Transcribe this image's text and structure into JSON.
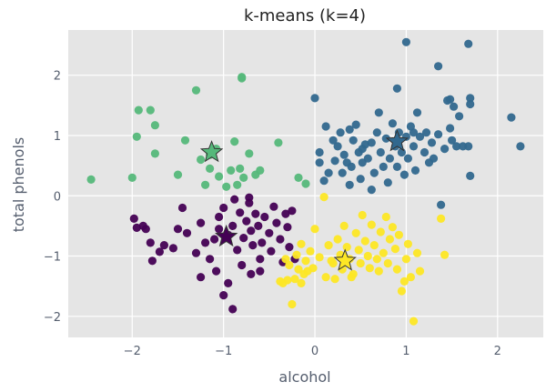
{
  "chart_data": {
    "type": "scatter",
    "title": "k-means (k=4)",
    "xlabel": "alcohol",
    "ylabel": "total phenols",
    "xlim": [
      -2.7,
      2.5
    ],
    "ylim": [
      -2.35,
      2.75
    ],
    "xticks": [
      -2,
      -1,
      0,
      1,
      2
    ],
    "yticks": [
      -2,
      -1,
      0,
      1,
      2
    ],
    "grid": true,
    "legend": "none",
    "colors": {
      "background": "#e5e5e5",
      "grid": "#ffffff",
      "cluster_0": "#440154",
      "cluster_1": "#31688e",
      "cluster_2": "#55b87a",
      "cluster_3": "#fde725",
      "marker_edge": "#333333"
    },
    "series": [
      {
        "values": [
          [
            -1.98,
            -0.38
          ],
          [
            -1.95,
            -0.53
          ],
          [
            -1.88,
            -0.5
          ],
          [
            -1.85,
            -0.55
          ],
          [
            -1.8,
            -0.78
          ],
          [
            -1.78,
            -1.08
          ],
          [
            -1.7,
            -0.93
          ],
          [
            -1.65,
            -0.82
          ],
          [
            -1.55,
            -0.87
          ],
          [
            -1.5,
            -0.55
          ],
          [
            -1.45,
            -0.2
          ],
          [
            -1.4,
            -0.62
          ],
          [
            -1.3,
            -0.95
          ],
          [
            -1.25,
            -0.45
          ],
          [
            -1.2,
            -0.78
          ],
          [
            -1.15,
            -1.05
          ],
          [
            -1.1,
            -0.72
          ],
          [
            -1.05,
            -0.35
          ],
          [
            -1.05,
            -0.55
          ],
          [
            -1.0,
            -0.2
          ],
          [
            -0.95,
            -0.65
          ],
          [
            -0.9,
            -0.5
          ],
          [
            -0.85,
            -0.9
          ],
          [
            -0.82,
            -0.28
          ],
          [
            -0.78,
            -0.7
          ],
          [
            -0.75,
            -0.42
          ],
          [
            -0.72,
            -0.12
          ],
          [
            -0.7,
            -0.58
          ],
          [
            -0.68,
            -0.82
          ],
          [
            -0.65,
            -0.3
          ],
          [
            -0.62,
            -0.5
          ],
          [
            -0.6,
            -1.05
          ],
          [
            -0.58,
            -0.78
          ],
          [
            -0.55,
            -0.35
          ],
          [
            -0.5,
            -0.62
          ],
          [
            -0.48,
            -0.92
          ],
          [
            -0.45,
            -0.18
          ],
          [
            -0.42,
            -0.45
          ],
          [
            -0.38,
            -0.72
          ],
          [
            -0.35,
            -1.1
          ],
          [
            -0.32,
            -0.3
          ],
          [
            -0.3,
            -0.52
          ],
          [
            -0.28,
            -0.85
          ],
          [
            -0.25,
            -0.25
          ],
          [
            -0.22,
            -1.05
          ],
          [
            -0.9,
            -1.88
          ],
          [
            -1.0,
            -1.65
          ],
          [
            -1.25,
            -1.35
          ],
          [
            -0.95,
            -1.45
          ],
          [
            -0.7,
            -1.3
          ],
          [
            -0.6,
            -1.25
          ],
          [
            -0.8,
            -1.15
          ],
          [
            -1.08,
            -1.25
          ],
          [
            -0.88,
            -0.06
          ],
          [
            -0.72,
            -0.03
          ]
        ],
        "center": [
          -0.97,
          -0.68
        ]
      },
      {
        "values": [
          [
            0.0,
            1.62
          ],
          [
            0.05,
            0.72
          ],
          [
            0.05,
            0.55
          ],
          [
            0.1,
            0.25
          ],
          [
            0.12,
            1.15
          ],
          [
            0.15,
            0.38
          ],
          [
            0.2,
            0.92
          ],
          [
            0.22,
            0.58
          ],
          [
            0.25,
            0.82
          ],
          [
            0.28,
            1.05
          ],
          [
            0.3,
            0.38
          ],
          [
            0.32,
            0.68
          ],
          [
            0.35,
            0.55
          ],
          [
            0.38,
            0.18
          ],
          [
            0.4,
            0.48
          ],
          [
            0.42,
            0.92
          ],
          [
            0.45,
            1.18
          ],
          [
            0.48,
            0.72
          ],
          [
            0.5,
            0.28
          ],
          [
            0.52,
            0.55
          ],
          [
            0.55,
            0.85
          ],
          [
            0.58,
            0.62
          ],
          [
            0.62,
            0.1
          ],
          [
            0.65,
            0.38
          ],
          [
            0.68,
            1.05
          ],
          [
            0.7,
            1.38
          ],
          [
            0.72,
            0.72
          ],
          [
            0.75,
            0.48
          ],
          [
            0.78,
            0.95
          ],
          [
            0.8,
            0.22
          ],
          [
            0.82,
            0.62
          ],
          [
            0.85,
            1.2
          ],
          [
            0.88,
            0.82
          ],
          [
            0.9,
            0.48
          ],
          [
            0.92,
            1.05
          ],
          [
            0.95,
            0.72
          ],
          [
            0.98,
            0.35
          ],
          [
            1.0,
            0.98
          ],
          [
            1.02,
            0.62
          ],
          [
            1.05,
            1.15
          ],
          [
            1.08,
            0.82
          ],
          [
            1.1,
            0.42
          ],
          [
            1.12,
            1.38
          ],
          [
            1.15,
            0.98
          ],
          [
            1.2,
            0.72
          ],
          [
            1.22,
            1.05
          ],
          [
            1.25,
            0.55
          ],
          [
            1.28,
            0.88
          ],
          [
            1.3,
            0.62
          ],
          [
            1.35,
            1.02
          ],
          [
            1.38,
            -0.15
          ],
          [
            1.42,
            0.78
          ],
          [
            1.45,
            1.58
          ],
          [
            1.48,
            1.12
          ],
          [
            1.5,
            0.92
          ],
          [
            1.52,
            1.48
          ],
          [
            1.55,
            0.82
          ],
          [
            1.58,
            1.32
          ],
          [
            1.62,
            0.82
          ],
          [
            1.68,
            0.82
          ],
          [
            1.7,
            1.52
          ],
          [
            1.7,
            1.62
          ],
          [
            1.7,
            0.33
          ],
          [
            1.68,
            2.52
          ],
          [
            1.0,
            2.55
          ],
          [
            1.35,
            2.15
          ],
          [
            0.9,
            1.78
          ],
          [
            2.15,
            1.3
          ],
          [
            2.25,
            0.82
          ],
          [
            1.48,
            1.6
          ],
          [
            1.08,
            1.05
          ],
          [
            0.52,
            0.78
          ],
          [
            0.38,
            1.1
          ],
          [
            0.62,
            0.88
          ]
        ],
        "center": [
          0.9,
          0.9
        ]
      },
      {
        "values": [
          [
            -2.45,
            0.27
          ],
          [
            -2.0,
            0.3
          ],
          [
            -1.95,
            0.98
          ],
          [
            -1.93,
            1.42
          ],
          [
            -1.8,
            1.42
          ],
          [
            -1.75,
            1.17
          ],
          [
            -1.75,
            0.7
          ],
          [
            -1.5,
            0.35
          ],
          [
            -1.42,
            0.92
          ],
          [
            -1.3,
            1.75
          ],
          [
            -1.25,
            0.6
          ],
          [
            -1.2,
            0.18
          ],
          [
            -1.15,
            0.68
          ],
          [
            -1.15,
            0.45
          ],
          [
            -1.08,
            0.78
          ],
          [
            -1.05,
            0.32
          ],
          [
            -0.97,
            0.15
          ],
          [
            -0.92,
            0.42
          ],
          [
            -0.88,
            0.9
          ],
          [
            -0.85,
            0.18
          ],
          [
            -0.82,
            0.45
          ],
          [
            -0.8,
            1.95
          ],
          [
            -0.8,
            1.97
          ],
          [
            -0.78,
            0.3
          ],
          [
            -0.72,
            0.7
          ],
          [
            -0.65,
            0.35
          ],
          [
            -0.6,
            0.42
          ],
          [
            -0.4,
            0.88
          ],
          [
            -0.18,
            0.3
          ],
          [
            -0.1,
            0.2
          ]
        ],
        "center": [
          -1.13,
          0.72
        ]
      },
      {
        "values": [
          [
            0.0,
            -0.55
          ],
          [
            0.05,
            -1.02
          ],
          [
            0.1,
            -0.02
          ],
          [
            0.12,
            -1.35
          ],
          [
            0.15,
            -0.82
          ],
          [
            0.2,
            -1.12
          ],
          [
            0.22,
            -1.38
          ],
          [
            0.25,
            -0.72
          ],
          [
            0.28,
            -0.98
          ],
          [
            0.3,
            -1.22
          ],
          [
            0.32,
            -0.5
          ],
          [
            0.35,
            -0.85
          ],
          [
            0.38,
            -1.05
          ],
          [
            0.42,
            -1.3
          ],
          [
            0.45,
            -0.62
          ],
          [
            0.48,
            -0.9
          ],
          [
            0.5,
            -1.12
          ],
          [
            0.52,
            -0.32
          ],
          [
            0.55,
            -0.75
          ],
          [
            0.58,
            -1.0
          ],
          [
            0.6,
            -1.2
          ],
          [
            0.62,
            -0.48
          ],
          [
            0.65,
            -0.82
          ],
          [
            0.68,
            -1.05
          ],
          [
            0.7,
            -1.25
          ],
          [
            0.72,
            -0.6
          ],
          [
            0.75,
            -0.95
          ],
          [
            0.78,
            -0.35
          ],
          [
            0.8,
            -1.12
          ],
          [
            0.82,
            -0.72
          ],
          [
            0.85,
            -0.52
          ],
          [
            0.88,
            -0.88
          ],
          [
            0.9,
            -1.22
          ],
          [
            0.92,
            -0.65
          ],
          [
            0.95,
            -1.58
          ],
          [
            0.98,
            -1.42
          ],
          [
            1.0,
            -1.05
          ],
          [
            1.02,
            -0.8
          ],
          [
            1.05,
            -1.35
          ],
          [
            1.08,
            -2.08
          ],
          [
            1.12,
            -0.95
          ],
          [
            1.15,
            -1.25
          ],
          [
            1.38,
            -0.38
          ],
          [
            1.42,
            -0.98
          ],
          [
            -0.02,
            -1.2
          ],
          [
            -0.05,
            -0.92
          ],
          [
            -0.08,
            -1.25
          ],
          [
            -0.1,
            -1.08
          ],
          [
            -0.12,
            -1.3
          ],
          [
            -0.15,
            -1.45
          ],
          [
            -0.18,
            -1.22
          ],
          [
            -0.2,
            -0.98
          ],
          [
            -0.22,
            -1.38
          ],
          [
            -0.25,
            -1.8
          ],
          [
            -0.28,
            -1.15
          ],
          [
            -0.3,
            -1.4
          ],
          [
            -0.35,
            -1.45
          ],
          [
            -0.38,
            -1.42
          ],
          [
            -0.32,
            -1.05
          ],
          [
            -0.15,
            -0.8
          ],
          [
            0.4,
            -1.35
          ],
          [
            0.18,
            -1.08
          ]
        ],
        "center": [
          0.33,
          -1.08
        ]
      }
    ]
  }
}
